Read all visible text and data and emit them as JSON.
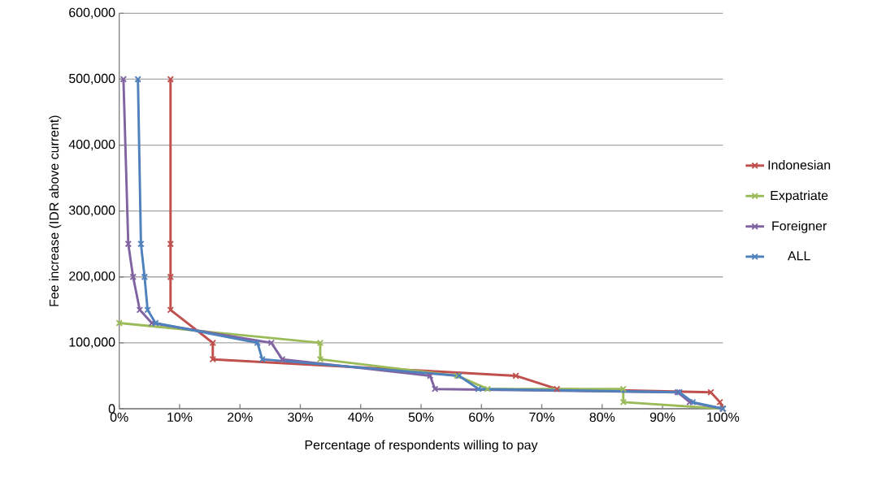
{
  "chart_data": {
    "type": "line",
    "xlabel": "Percentage of respondents willing to pay",
    "ylabel": "Fee increase (IDR above current)",
    "xlim": [
      0,
      100
    ],
    "xticks": [
      {
        "value": 0,
        "label": "0%"
      },
      {
        "value": 10,
        "label": "10%"
      },
      {
        "value": 20,
        "label": "20%"
      },
      {
        "value": 30,
        "label": "30%"
      },
      {
        "value": 40,
        "label": "40%"
      },
      {
        "value": 50,
        "label": "50%"
      },
      {
        "value": 60,
        "label": "60%"
      },
      {
        "value": 70,
        "label": "70%"
      },
      {
        "value": 80,
        "label": "80%"
      },
      {
        "value": 90,
        "label": "90%"
      },
      {
        "value": 100,
        "label": "100%"
      }
    ],
    "ylim": [
      0,
      600000
    ],
    "yticks": [
      {
        "value": 0,
        "label": "0"
      },
      {
        "value": 100000,
        "label": "100,000"
      },
      {
        "value": 200000,
        "label": "200,000"
      },
      {
        "value": 300000,
        "label": "300,000"
      },
      {
        "value": 400000,
        "label": "400,000"
      },
      {
        "value": 500000,
        "label": "500,000"
      },
      {
        "value": 600000,
        "label": "600,000"
      }
    ],
    "grid": "y",
    "legend": "right",
    "marker": "cross",
    "line_style": "solid",
    "series": [
      {
        "name": "Indonesian",
        "color": "#c0504d",
        "x": [
          8.5,
          8.5,
          8.5,
          8.5,
          15.5,
          15.5,
          65.7,
          72.5,
          98,
          99.5,
          100
        ],
        "values": [
          500000,
          250000,
          200000,
          150000,
          100000,
          75000,
          50000,
          30000,
          25000,
          10000,
          0
        ]
      },
      {
        "name": "Expatriate",
        "color": "#9bbb59",
        "x": [
          0,
          33.3,
          33.3,
          56,
          61,
          83.5,
          83.5,
          100
        ],
        "values": [
          130000,
          100000,
          75000,
          50000,
          30000,
          30000,
          10000,
          0
        ]
      },
      {
        "name": "Foreigner",
        "color": "#8064a2",
        "x": [
          0.7,
          1.5,
          2.3,
          3.4,
          5.4,
          25.2,
          27,
          51.5,
          52.3,
          92.5,
          94.5,
          100
        ],
        "values": [
          500000,
          250000,
          200000,
          150000,
          130000,
          100000,
          75000,
          50000,
          30000,
          25000,
          10000,
          0
        ]
      },
      {
        "name": "ALL",
        "color": "#4f81bd",
        "x": [
          3.1,
          3.6,
          4.2,
          4.7,
          6,
          22.9,
          23.7,
          56.3,
          59.5,
          92.8,
          95,
          100
        ],
        "values": [
          500000,
          250000,
          200000,
          150000,
          130000,
          100000,
          75000,
          50000,
          30000,
          25000,
          10000,
          0
        ]
      }
    ]
  }
}
